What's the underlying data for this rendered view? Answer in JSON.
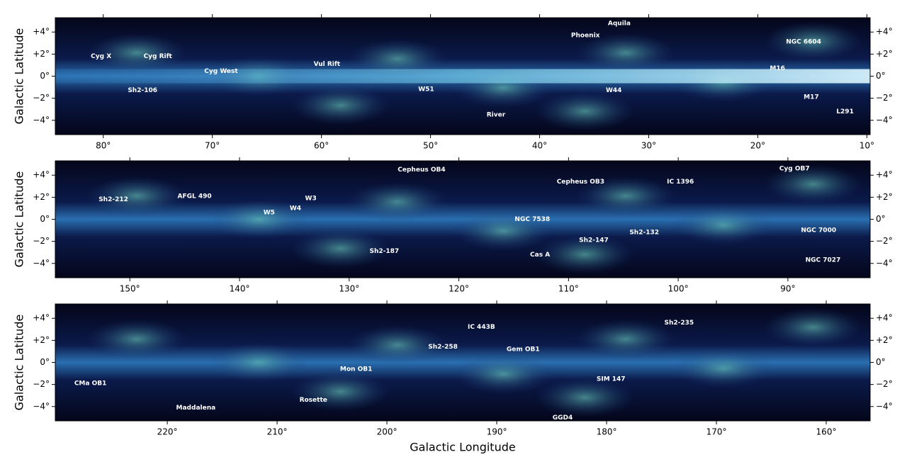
{
  "chart_data": [
    {
      "type": "image",
      "ylabel": "Galactic Latitude",
      "xlim": [
        84.4,
        9.7
      ],
      "ylim": [
        -5.3,
        5.3
      ],
      "xticks": [
        {
          "value": 80,
          "label": "80°"
        },
        {
          "value": 70,
          "label": "70°"
        },
        {
          "value": 60,
          "label": "60°"
        },
        {
          "value": 50,
          "label": "50°"
        },
        {
          "value": 40,
          "label": "40°"
        },
        {
          "value": 30,
          "label": "30°"
        },
        {
          "value": 20,
          "label": "20°"
        },
        {
          "value": 10,
          "label": "10°"
        }
      ],
      "yticks": [
        {
          "value": 4,
          "label": "+4°"
        },
        {
          "value": 2,
          "label": "+2°"
        },
        {
          "value": 0,
          "label": "0°"
        },
        {
          "value": -2,
          "label": "−2°"
        },
        {
          "value": -4,
          "label": "−4°"
        }
      ],
      "annotations": [
        {
          "text": "Cyg X",
          "x": 80.2,
          "y": 1.8
        },
        {
          "text": "Cyg Rift",
          "x": 75.0,
          "y": 1.8
        },
        {
          "text": "Cyg West",
          "x": 69.2,
          "y": 0.45
        },
        {
          "text": "Sh2-106",
          "x": 76.4,
          "y": -1.3
        },
        {
          "text": "Vul Rift",
          "x": 59.5,
          "y": 1.1
        },
        {
          "text": "W51",
          "x": 50.4,
          "y": -1.2
        },
        {
          "text": "River",
          "x": 44.0,
          "y": -3.5
        },
        {
          "text": "Phoenix",
          "x": 35.8,
          "y": 3.7
        },
        {
          "text": "Aquila",
          "x": 32.7,
          "y": 4.8
        },
        {
          "text": "W44",
          "x": 33.2,
          "y": -1.3
        },
        {
          "text": "NGC 6604",
          "x": 15.8,
          "y": 3.1
        },
        {
          "text": "M16",
          "x": 18.2,
          "y": 0.7
        },
        {
          "text": "M17",
          "x": 15.1,
          "y": -1.9
        },
        {
          "text": "L291",
          "x": 12.0,
          "y": -3.2
        }
      ]
    },
    {
      "type": "image",
      "ylabel": "Galactic Latitude",
      "xlim": [
        156.8,
        82.5
      ],
      "ylim": [
        -5.3,
        5.3
      ],
      "xticks": [
        {
          "value": 150,
          "label": "150°"
        },
        {
          "value": 140,
          "label": "140°"
        },
        {
          "value": 130,
          "label": "130°"
        },
        {
          "value": 120,
          "label": "120°"
        },
        {
          "value": 110,
          "label": "110°"
        },
        {
          "value": 100,
          "label": "100°"
        },
        {
          "value": 90,
          "label": "90°"
        }
      ],
      "yticks": [
        {
          "value": 4,
          "label": "+4°"
        },
        {
          "value": 2,
          "label": "+2°"
        },
        {
          "value": 0,
          "label": "0°"
        },
        {
          "value": -2,
          "label": "−2°"
        },
        {
          "value": -4,
          "label": "−4°"
        }
      ],
      "annotations": [
        {
          "text": "Sh2-212",
          "x": 151.5,
          "y": 1.8
        },
        {
          "text": "AFGL 490",
          "x": 144.1,
          "y": 2.1
        },
        {
          "text": "W5",
          "x": 137.3,
          "y": 0.6
        },
        {
          "text": "W4",
          "x": 134.9,
          "y": 1.0
        },
        {
          "text": "W3",
          "x": 133.5,
          "y": 1.9
        },
        {
          "text": "Cepheus OB4",
          "x": 123.4,
          "y": 4.5
        },
        {
          "text": "Sh2-187",
          "x": 126.8,
          "y": -2.9
        },
        {
          "text": "NGC 7538",
          "x": 113.3,
          "y": 0
        },
        {
          "text": "Cepheus OB3",
          "x": 108.9,
          "y": 3.4
        },
        {
          "text": "Cas A",
          "x": 112.6,
          "y": -3.2
        },
        {
          "text": "Sh2-147",
          "x": 107.7,
          "y": -1.9
        },
        {
          "text": "Sh2-132",
          "x": 103.1,
          "y": -1.2
        },
        {
          "text": "IC 1396",
          "x": 99.8,
          "y": 3.4
        },
        {
          "text": "Cyg OB7",
          "x": 89.4,
          "y": 4.6
        },
        {
          "text": "NGC 7000",
          "x": 87.2,
          "y": -1.0
        },
        {
          "text": "NGC 7027",
          "x": 86.8,
          "y": -3.7
        }
      ]
    },
    {
      "type": "image",
      "ylabel": "Galactic Latitude",
      "xlabel": "Galactic Longitude",
      "xlim": [
        230.2,
        156.0
      ],
      "ylim": [
        -5.3,
        5.3
      ],
      "xticks": [
        {
          "value": 220,
          "label": "220°"
        },
        {
          "value": 210,
          "label": "210°"
        },
        {
          "value": 200,
          "label": "200°"
        },
        {
          "value": 190,
          "label": "190°"
        },
        {
          "value": 180,
          "label": "180°"
        },
        {
          "value": 170,
          "label": "170°"
        },
        {
          "value": 160,
          "label": "160°"
        }
      ],
      "yticks": [
        {
          "value": 4,
          "label": "+4°"
        },
        {
          "value": 2,
          "label": "+2°"
        },
        {
          "value": 0,
          "label": "0°"
        },
        {
          "value": -2,
          "label": "−2°"
        },
        {
          "value": -4,
          "label": "−4°"
        }
      ],
      "annotations": [
        {
          "text": "CMa OB1",
          "x": 227.0,
          "y": -1.9
        },
        {
          "text": "Maddalena",
          "x": 217.4,
          "y": -4.1
        },
        {
          "text": "Rosette",
          "x": 206.7,
          "y": -3.4
        },
        {
          "text": "Mon OB1",
          "x": 202.8,
          "y": -0.6
        },
        {
          "text": "Sh2-258",
          "x": 194.9,
          "y": 1.4
        },
        {
          "text": "IC 443B",
          "x": 191.4,
          "y": 3.2
        },
        {
          "text": "Gem OB1",
          "x": 187.6,
          "y": 1.2
        },
        {
          "text": "GGD4",
          "x": 184.0,
          "y": -5.0
        },
        {
          "text": "SIM 147",
          "x": 179.6,
          "y": -1.5
        },
        {
          "text": "Sh2-235",
          "x": 173.4,
          "y": 3.6
        }
      ]
    }
  ]
}
